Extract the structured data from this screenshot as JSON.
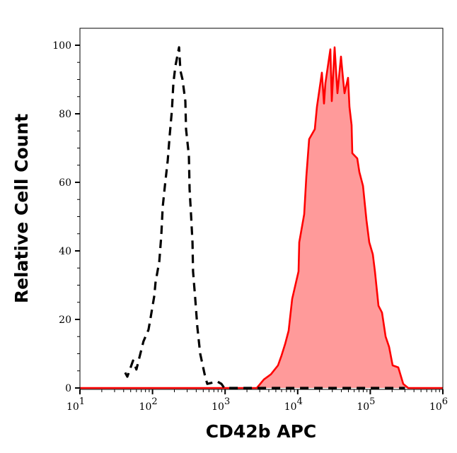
{
  "chart_data": {
    "type": "area",
    "xlabel": "CD42b APC",
    "ylabel": "Relative Cell Count",
    "x_scale": "log",
    "xlim": [
      10,
      1000000
    ],
    "ylim": [
      0,
      105
    ],
    "grid": false,
    "x_ticks": [
      {
        "base": "10",
        "exp": "1",
        "value": 10
      },
      {
        "base": "10",
        "exp": "2",
        "value": 100
      },
      {
        "base": "10",
        "exp": "3",
        "value": 1000
      },
      {
        "base": "10",
        "exp": "4",
        "value": 10000
      },
      {
        "base": "10",
        "exp": "5",
        "value": 100000
      },
      {
        "base": "10",
        "exp": "6",
        "value": 1000000
      }
    ],
    "y_ticks": [
      "0",
      "20",
      "40",
      "60",
      "80",
      "100"
    ],
    "series": [
      {
        "style": "dashed",
        "color": "#000000",
        "filled": false,
        "x": [
          42,
          45,
          54,
          60,
          75,
          88,
          94,
          106,
          110,
          124,
          132,
          138,
          148,
          162,
          173,
          185,
          194,
          207,
          232,
          242,
          259,
          283,
          290,
          317,
          324,
          339,
          355,
          362,
          388,
          415,
          454,
          531,
          568,
          778,
          890,
          973,
          300000
        ],
        "y": [
          4.5,
          3.3,
          8,
          5.4,
          13.6,
          17,
          20.4,
          27,
          30.7,
          37,
          44.5,
          52.8,
          59,
          66.4,
          74,
          81,
          89,
          94,
          99.4,
          92.6,
          90,
          83.7,
          75.5,
          67.8,
          58,
          50.7,
          42.5,
          34,
          26,
          17.7,
          10,
          3.3,
          1.2,
          1.9,
          1.2,
          0,
          0
        ]
      },
      {
        "style": "solid",
        "color": "#ff0000",
        "fill": "#ff9a9a",
        "filled": true,
        "x": [
          10,
          2735,
          3420,
          4285,
          5360,
          6000,
          6710,
          7500,
          8400,
          10280,
          10500,
          12300,
          13150,
          14380,
          17220,
          18410,
          21540,
          23070,
          24100,
          28200,
          29500,
          32260,
          35300,
          39470,
          42260,
          44180,
          49430,
          51640,
          55300,
          56500,
          66200,
          70800,
          79300,
          88500,
          96900,
          108400,
          115900,
          129700,
          145200,
          162600,
          181600,
          203300,
          243200,
          284500,
          332700,
          1000000
        ],
        "y": [
          0,
          0,
          2.5,
          4,
          6.6,
          9.5,
          12.8,
          16.7,
          26,
          34,
          42.5,
          50.7,
          61.6,
          72.6,
          75.5,
          82,
          92,
          83,
          89,
          98.8,
          83.7,
          99.4,
          86,
          96.7,
          90,
          86,
          90.5,
          82,
          76.7,
          68.5,
          67,
          63,
          59,
          49,
          42.5,
          39,
          34,
          24,
          22,
          15,
          12,
          6.6,
          6,
          1.2,
          0,
          0
        ]
      }
    ]
  }
}
